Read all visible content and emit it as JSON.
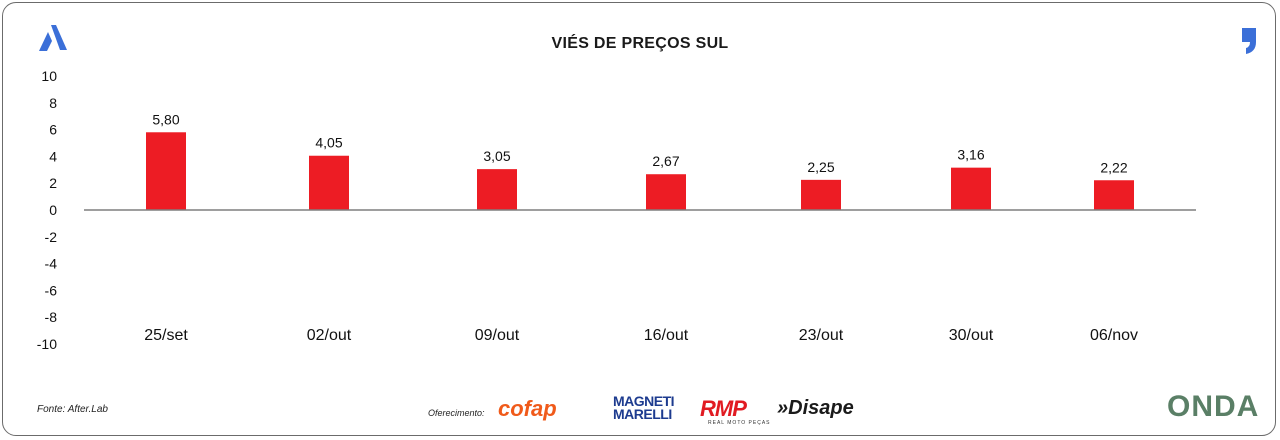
{
  "header": {
    "title": "VIÉS DE PREÇOS SUL"
  },
  "footer": {
    "source": "Fonte: After.Lab",
    "offered_by": "Oferecimento:",
    "sponsors": [
      "cofap",
      "MAGNETI MARELLI",
      "RMP",
      "»Disape"
    ],
    "rmp_subtitle": "REAL MOTO PEÇAS",
    "brand": "ONDA"
  },
  "colors": {
    "bar": "#ed1c24",
    "logo_blue": "#3b6fd8",
    "onda_green": "#5a7f66"
  },
  "icons": {
    "left_logo": "a-logo-icon",
    "right_logo": "quote-logo-icon"
  },
  "chart_data": {
    "type": "bar",
    "title": "VIÉS DE PREÇOS SUL",
    "categories": [
      "25/set",
      "02/out",
      "09/out",
      "16/out",
      "23/out",
      "30/out",
      "06/nov"
    ],
    "values": [
      5.8,
      4.05,
      3.05,
      2.67,
      2.25,
      3.16,
      2.22
    ],
    "value_labels": [
      "5,80",
      "4,05",
      "3,05",
      "2,67",
      "2,25",
      "3,16",
      "2,22"
    ],
    "yticks": [
      "10",
      "8",
      "6",
      "4",
      "2",
      "0",
      "-2",
      "-4",
      "-6",
      "-8",
      "-10"
    ],
    "ylim": [
      -10,
      10
    ],
    "grid": false,
    "legend": "none",
    "xlabel": "",
    "ylabel": ""
  }
}
